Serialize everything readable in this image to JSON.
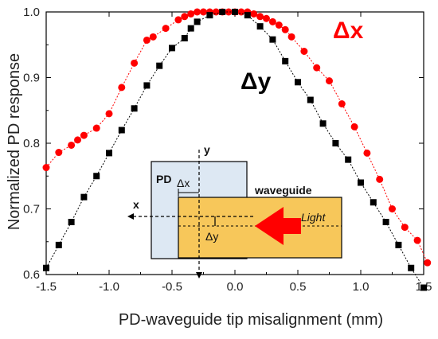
{
  "chart_data": {
    "type": "scatter",
    "xlabel": "PD-waveguide tip misalignment (mm)",
    "ylabel": "Normalized PD response",
    "xlim": [
      -1.5,
      1.5
    ],
    "ylim": [
      0.6,
      1.0
    ],
    "xticks": [
      "-1.5",
      "-1.0",
      "-0.5",
      "0.0",
      "0.5",
      "1.0",
      "1.5"
    ],
    "yticks": [
      "0.6",
      "0.7",
      "0.8",
      "0.9",
      "1.0"
    ],
    "grid": false,
    "series": [
      {
        "name": "Δx",
        "color": "#ff0000",
        "marker": "circle",
        "x": [
          -1.5,
          -1.4,
          -1.3,
          -1.25,
          -1.2,
          -1.1,
          -1.0,
          -0.9,
          -0.8,
          -0.7,
          -0.65,
          -0.55,
          -0.45,
          -0.4,
          -0.35,
          -0.3,
          -0.25,
          -0.2,
          -0.15,
          -0.1,
          -0.05,
          0.0,
          0.05,
          0.1,
          0.15,
          0.2,
          0.25,
          0.3,
          0.35,
          0.4,
          0.45,
          0.55,
          0.65,
          0.75,
          0.85,
          0.95,
          1.05,
          1.15,
          1.25,
          1.35,
          1.45,
          1.53
        ],
        "y": [
          0.763,
          0.786,
          0.797,
          0.805,
          0.812,
          0.823,
          0.845,
          0.885,
          0.922,
          0.957,
          0.962,
          0.975,
          0.988,
          0.993,
          0.997,
          1.0,
          1.0,
          1.0,
          1.0,
          1.0,
          1.0,
          1.0,
          1.0,
          1.0,
          0.997,
          0.993,
          0.99,
          0.985,
          0.98,
          0.973,
          0.962,
          0.94,
          0.915,
          0.895,
          0.86,
          0.825,
          0.785,
          0.745,
          0.7,
          0.672,
          0.652,
          0.618
        ]
      },
      {
        "name": "Δy",
        "color": "#000000",
        "marker": "square",
        "x": [
          -1.5,
          -1.4,
          -1.3,
          -1.2,
          -1.1,
          -1.0,
          -0.9,
          -0.8,
          -0.7,
          -0.6,
          -0.5,
          -0.4,
          -0.35,
          -0.3,
          -0.2,
          -0.1,
          0.0,
          0.1,
          0.2,
          0.3,
          0.4,
          0.5,
          0.6,
          0.7,
          0.8,
          0.9,
          1.0,
          1.1,
          1.2,
          1.3,
          1.4,
          1.5
        ],
        "y": [
          0.61,
          0.645,
          0.68,
          0.718,
          0.75,
          0.785,
          0.82,
          0.853,
          0.888,
          0.918,
          0.945,
          0.96,
          0.975,
          0.985,
          0.995,
          1.0,
          1.0,
          0.995,
          0.978,
          0.958,
          0.925,
          0.893,
          0.866,
          0.83,
          0.8,
          0.775,
          0.74,
          0.71,
          0.68,
          0.645,
          0.61,
          0.58
        ]
      }
    ],
    "annotations": {
      "dx_label": "Δx",
      "dy_label": "Δy"
    },
    "inset": {
      "pd_label": "PD",
      "waveguide_label": "waveguide",
      "light_label": "Light",
      "x_axis_label": "x",
      "y_axis_label": "y",
      "dx_label": "Δx",
      "dy_label": "Δy",
      "pd_color": "#dde8f3",
      "waveguide_color": "#f7c75a",
      "arrow_color": "#ff0000"
    }
  }
}
